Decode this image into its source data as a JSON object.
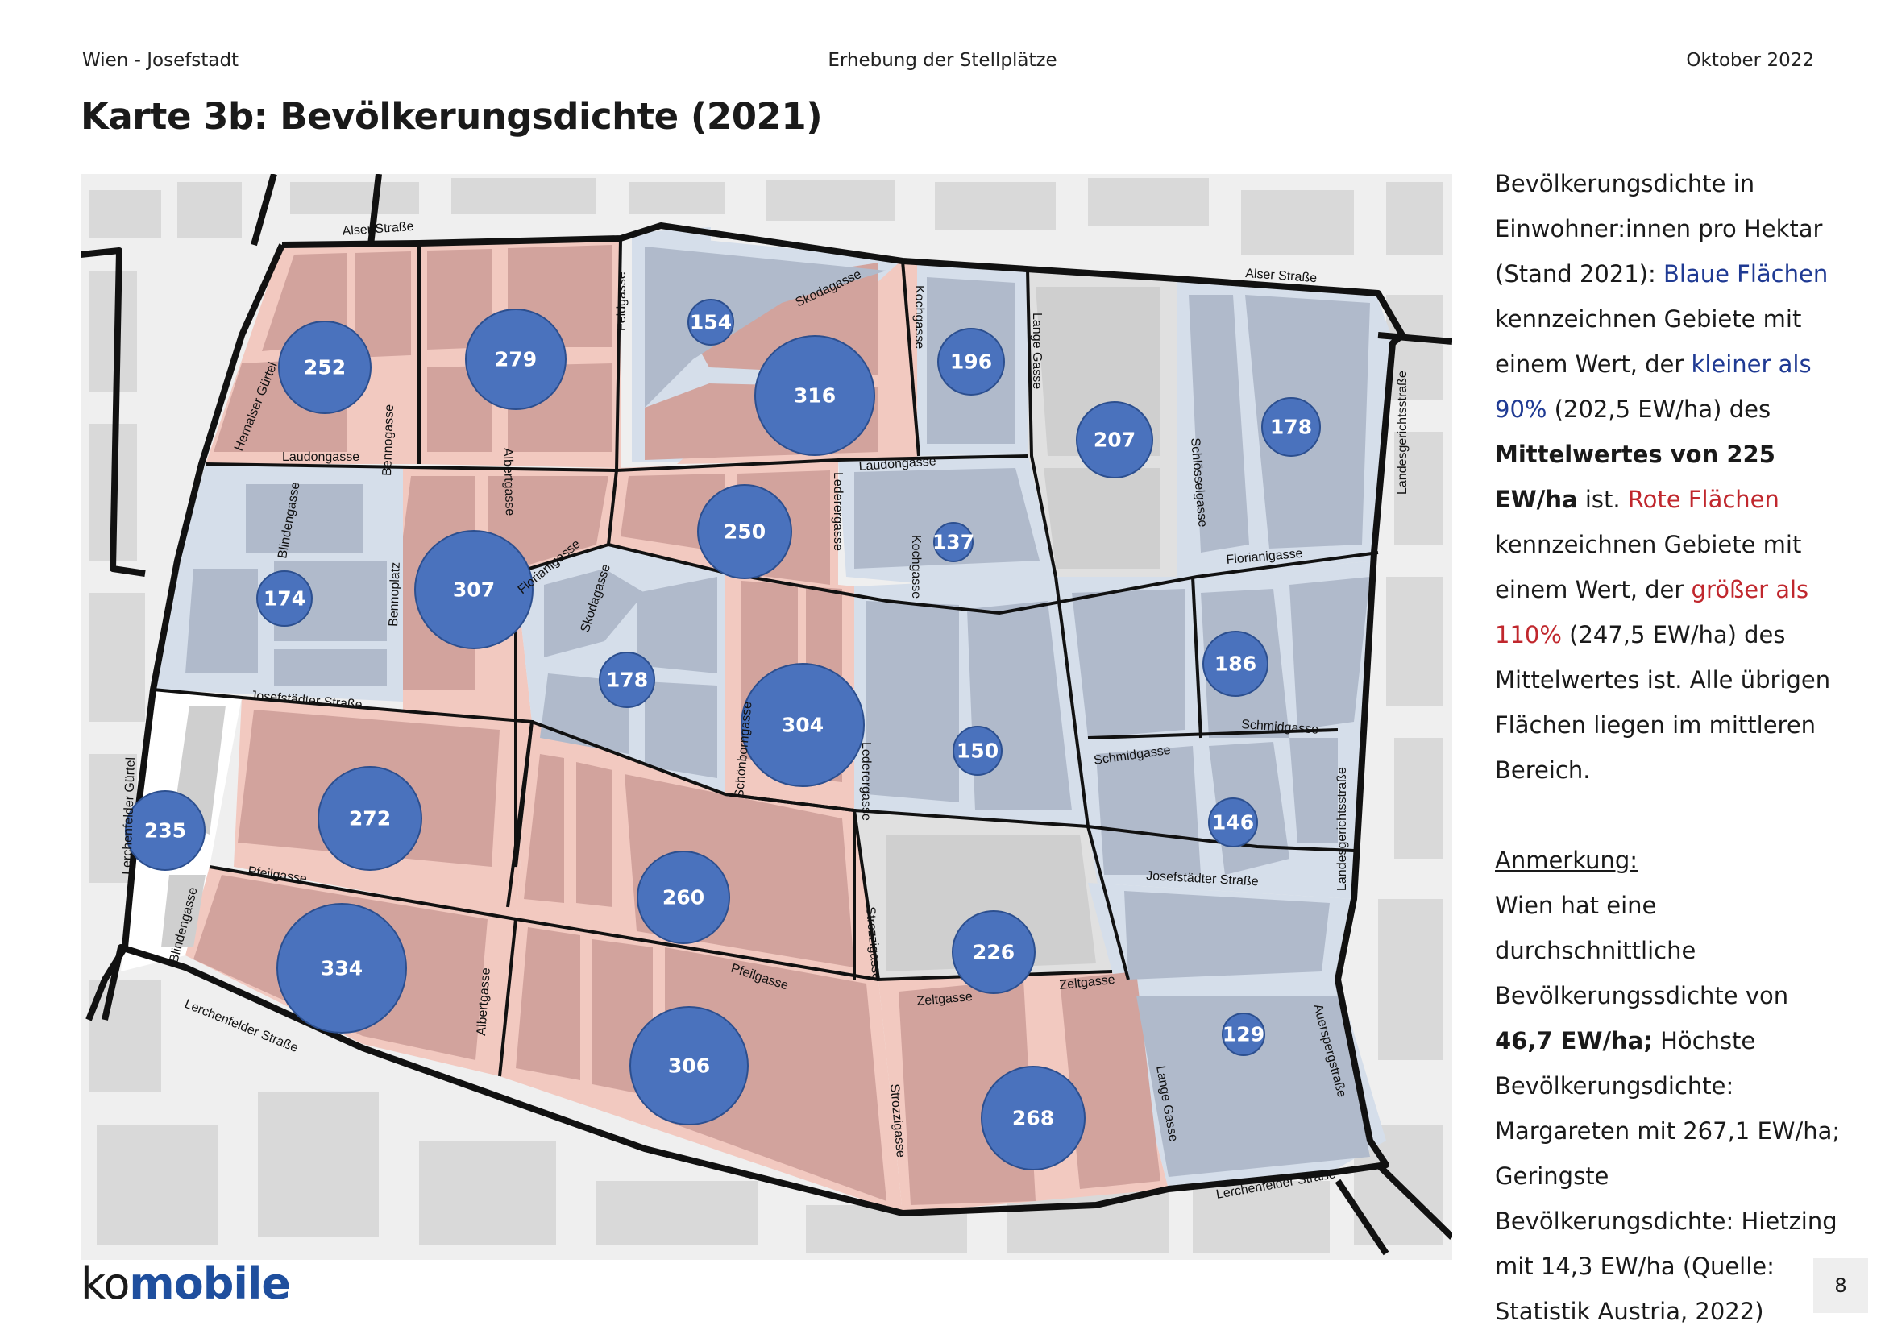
{
  "header": {
    "left": "Wien - Josefstadt",
    "center": "Erhebung der Stellplätze",
    "right": "Oktober 2022"
  },
  "title": "Karte 3b: Bevölkerungsdichte (2021)",
  "colors": {
    "blue_area": "#aab5c8",
    "red_area": "#d49f99",
    "grey_area": "#d8d8d8",
    "circle": "#4a72bd",
    "border": "#111111",
    "text_blue": "#1f3a93",
    "text_red": "#c0272d"
  },
  "sidebar": {
    "p1_a": "Bevölkerungsdichte in Einwohner:innen pro Hektar (Stand 2021): ",
    "p1_blue1": "Blaue Flächen",
    "p1_b": " kennzeichnen Gebiete mit einem Wert, der ",
    "p1_blue2": "kleiner als 90%",
    "p1_c": " (202,5 EW/ha) des ",
    "p1_bold": "Mittelwertes von 225 EW/ha",
    "p1_d": " ist. ",
    "p1_red1": "Rote Flächen",
    "p1_e": " kennzeichnen Gebiete mit einem Wert, der ",
    "p1_red2": "größer als 110%",
    "p1_f": " (247,5 EW/ha) des Mittelwertes ist. Alle übrigen Flächen liegen im mittleren Bereich.",
    "note_head": "Anmerkung:",
    "p2_a": "Wien hat eine durchschnittliche Bevölkerungssdichte von ",
    "p2_bold": "46,7 EW/ha;",
    "p2_b": " Höchste Bevölkerungsdichte: Margareten mit 267,1 EW/ha;  Geringste Bevölkerungsdichte: Hietzing mit 14,3 EW/ha (Quelle: Statistik Austria, 2022)"
  },
  "map": {
    "values": {
      "v252": "252",
      "v279": "279",
      "v154": "154",
      "v316": "316",
      "v196": "196",
      "v207": "207",
      "v178a": "178",
      "v250": "250",
      "v137": "137",
      "v174": "174",
      "v307": "307",
      "v178b": "178",
      "v304": "304",
      "v186": "186",
      "v150": "150",
      "v235": "235",
      "v272": "272",
      "v146": "146",
      "v260": "260",
      "v334": "334",
      "v226": "226",
      "v129": "129",
      "v306": "306",
      "v268": "268"
    },
    "streets": {
      "alser1": "Alser Straße",
      "alser2": "Alser Straße",
      "hernalser": "Hernalser Gürtel",
      "laudon1": "Laudongasse",
      "laudon2": "Laudongasse",
      "feldgasse": "Feldgasse",
      "skoda1": "Skodagasse",
      "skoda2": "Skodagasse",
      "koch1": "Kochgasse",
      "koch2": "Kochgasse",
      "lange1": "Lange Gasse",
      "lange2": "Lange Gasse",
      "schloessel": "Schlösselgasse",
      "landesger1": "Landesgerichtsstraße",
      "landesger2": "Landesgerichtsstraße",
      "blinden1": "Blindengasse",
      "blinden2": "Blindengasse",
      "benno1": "Bennogasse",
      "bennoplatz": "Bennoplatz",
      "albert1": "Albertgasse",
      "albert2": "Albertgasse",
      "floriani1": "Florianigasse",
      "floriani2": "Florianigasse",
      "leder1": "Lederergasse",
      "leder2": "Lederergasse",
      "schoenborn": "Schönborngasse",
      "josef1": "Josefstädter Straße",
      "josef2": "Josefstädter Straße",
      "schmid1": "Schmidgasse",
      "schmid2": "Schmidgasse",
      "lerchgurtel": "Lerchenfelder Gürtel",
      "pfeil1": "Pfeilgasse",
      "pfeil2": "Pfeilgasse",
      "strozzi1": "Strozzigasse",
      "strozzi2": "Strozzigasse",
      "zelt1": "Zeltgasse",
      "zelt2": "Zeltgasse",
      "auersperg": "Auerspergstraße",
      "lerch1": "Lerchenfelder Straße",
      "lerch2": "Lerchenfelder Straße"
    }
  },
  "footer": {
    "logo_ko": "ko",
    "logo_mobile": "mobile",
    "page": "8"
  }
}
